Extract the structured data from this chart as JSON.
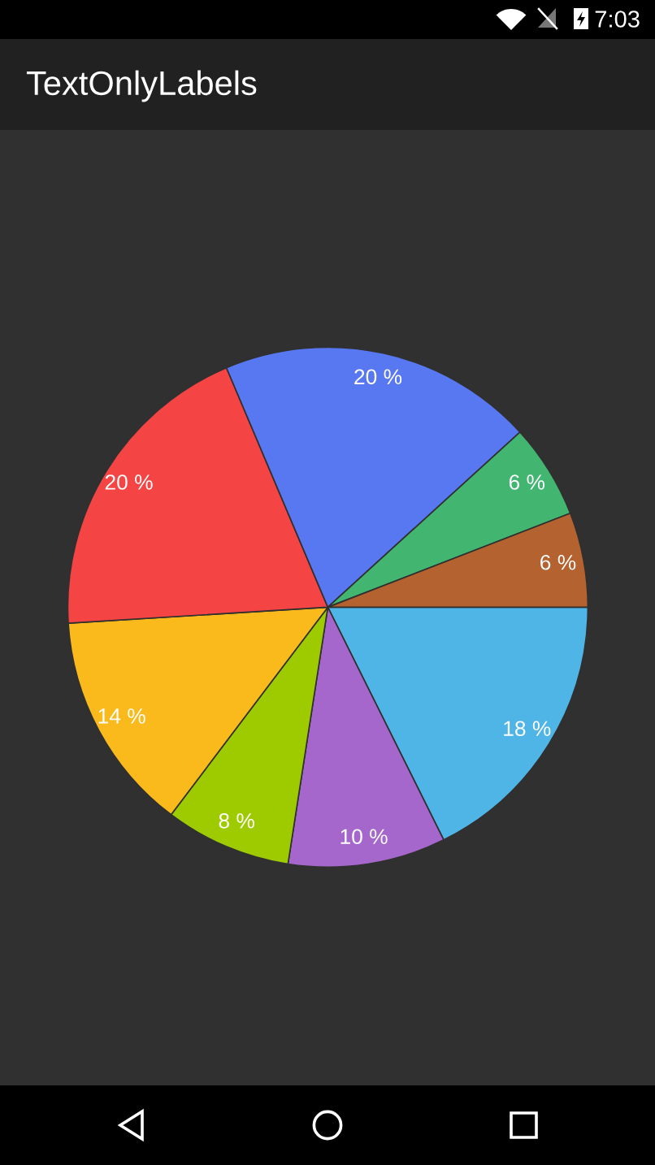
{
  "chart_data": {
    "type": "pie",
    "title": "TextOnlyLabels",
    "categories": [
      null,
      null,
      null,
      null,
      null,
      null,
      null,
      null
    ],
    "values": [
      18,
      10,
      8,
      14,
      20,
      20,
      6,
      6
    ],
    "colors": [
      "#4fb4e6",
      "#a567cc",
      "#9ecb00",
      "#fbba1b",
      "#f44444",
      "#5878f2",
      "#42b571",
      "#b4622f"
    ],
    "value_labels": [
      "18 %",
      "10 %",
      "8 %",
      "14 %",
      "20 %",
      "20 %",
      "6 %",
      "6 %"
    ],
    "annotations": [
      "7:03"
    ]
  }
}
